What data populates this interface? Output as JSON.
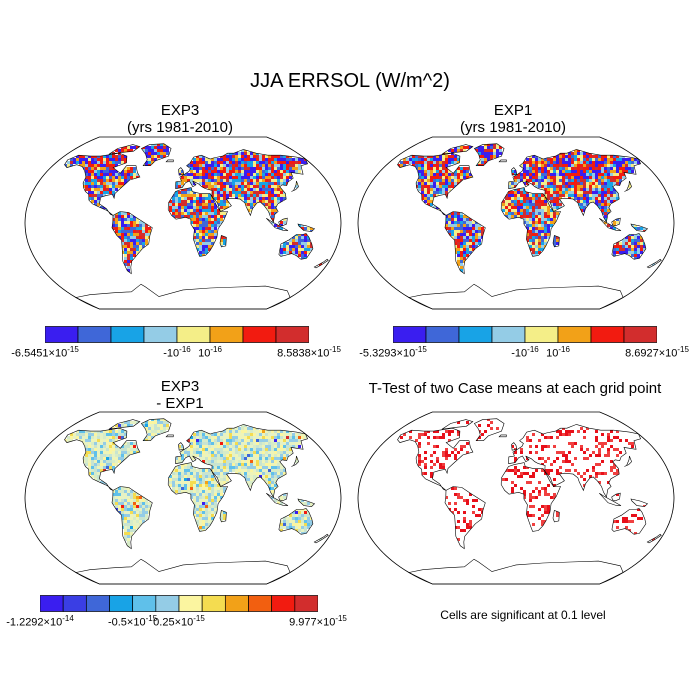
{
  "title": "JJA ERRSOL (W/m^2)",
  "panels": {
    "top_left": {
      "line1": "EXP3",
      "line2": "(yrs 1981-2010)"
    },
    "top_right": {
      "line1": "EXP1",
      "line2": "(yrs 1981-2010)"
    },
    "bottom_left": {
      "line1": "EXP3",
      "line2": "- EXP1"
    },
    "bottom_right": {
      "title": "T-Test of two Case means at each grid point",
      "note": "Cells are significant at 0.1 level"
    }
  },
  "colorbars": {
    "top_left": {
      "colors": [
        "#3a1ef0",
        "#3f67d8",
        "#18a3e6",
        "#94cce6",
        "#f4ee88",
        "#f2a118",
        "#f21b10",
        "#d22d2d"
      ],
      "labels": [
        {
          "mant": "-6.5451",
          "exp": "-15"
        },
        {
          "mant": "-10",
          "exp": "-16",
          "plain": true
        },
        {
          "mant": "10",
          "exp": "-16",
          "plain": true
        },
        {
          "mant": "8.5838",
          "exp": "-15"
        }
      ]
    },
    "top_right": {
      "colors": [
        "#3a1ef0",
        "#3f67d8",
        "#18a3e6",
        "#94cce6",
        "#f4ee88",
        "#f2a118",
        "#f21b10",
        "#d22d2d"
      ],
      "labels": [
        {
          "mant": "-5.3293",
          "exp": "-15"
        },
        {
          "mant": "-10",
          "exp": "-16",
          "plain": true
        },
        {
          "mant": "10",
          "exp": "-16",
          "plain": true
        },
        {
          "mant": "8.6927",
          "exp": "-15"
        }
      ]
    },
    "bottom_left": {
      "colors": [
        "#3a1ef0",
        "#3a3ee4",
        "#3f67d8",
        "#18a3e6",
        "#5fc0ea",
        "#94cce6",
        "#fbf5a0",
        "#f4dc50",
        "#f2a118",
        "#f25f10",
        "#f21b10",
        "#d22d2d"
      ],
      "labels": [
        {
          "mant": "-1.2292",
          "exp": "-14"
        },
        {
          "mant": "-0.5",
          "exp": "-15"
        },
        {
          "mant": "0.25",
          "exp": "-15"
        },
        {
          "mant": "9.977",
          "exp": "-15"
        }
      ]
    }
  }
}
